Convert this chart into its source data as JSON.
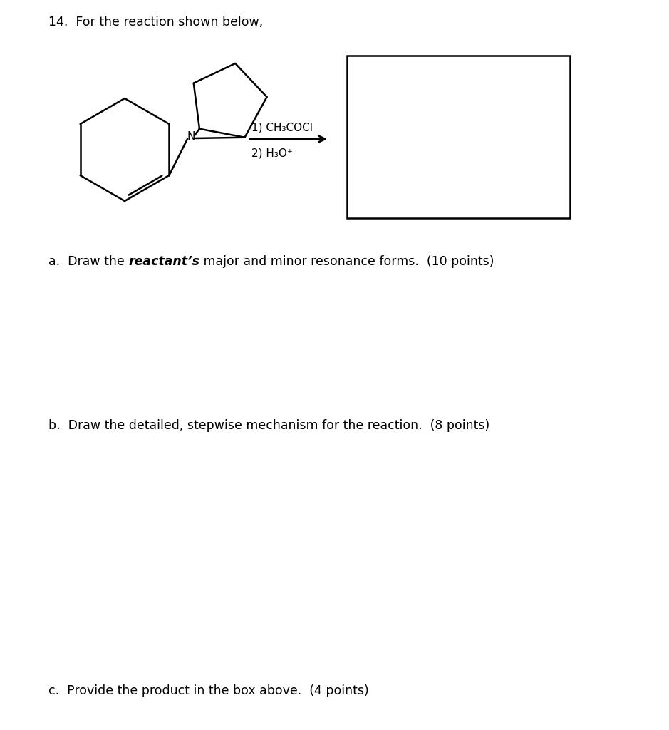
{
  "background_color": "#ffffff",
  "header_text": "14.  For the reaction shown below,",
  "header_fontsize": 12.5,
  "reagent_line1": "1) CH₃COCl",
  "reagent_line2": "2) H₃O⁺",
  "text_fontsize": 12.5,
  "part_a_prefix": "a.  Draw the ",
  "part_a_bold": "reactant’s",
  "part_a_suffix": " major and minor resonance forms.  (10 points)",
  "part_b_text": "b.  Draw the detailed, stepwise mechanism for the reaction.  (8 points)",
  "part_c_text": "c.  Provide the product in the box above.  (4 points)"
}
